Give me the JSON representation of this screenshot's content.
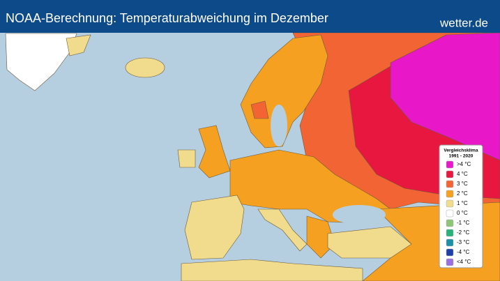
{
  "header": {
    "title": "NOAA-Berechnung: Temperaturabweichung im Dezember",
    "brand": "wetter.de"
  },
  "legend": {
    "title": [
      "Vergleichsklima",
      "1991 - 2020"
    ],
    "items": [
      {
        "label": ">4 °C",
        "color": "#e817c8"
      },
      {
        "label": "4 °C",
        "color": "#e8173f"
      },
      {
        "label": "3 °C",
        "color": "#f26433"
      },
      {
        "label": "2 °C",
        "color": "#f5a020"
      },
      {
        "label": "1 °C",
        "color": "#f0dc8c"
      },
      {
        "label": "0 °C",
        "color": "#ffffff"
      },
      {
        "label": "-1 °C",
        "color": "#8fc47a"
      },
      {
        "label": "-2 °C",
        "color": "#2ab07a"
      },
      {
        "label": "-3 °C",
        "color": "#1d8fa8"
      },
      {
        "label": "-4 °C",
        "color": "#1f3fa8"
      },
      {
        "label": "<4 °C",
        "color": "#9b6fe0"
      }
    ]
  }
}
